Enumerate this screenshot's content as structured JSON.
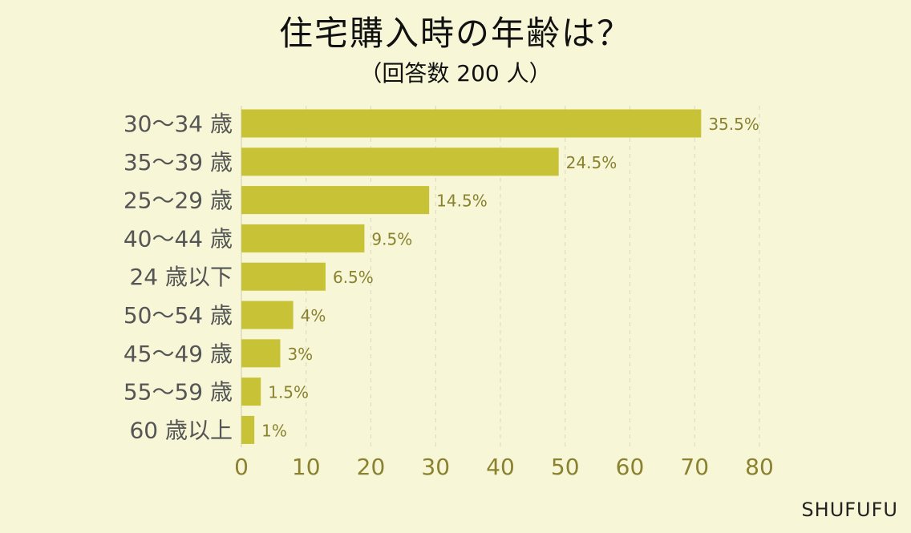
{
  "chart_data": {
    "type": "bar",
    "orientation": "horizontal",
    "title": "住宅購入時の年齢は？",
    "subtitle": "（回答数 200 人）",
    "categories": [
      "30～34 歳",
      "35～39 歳",
      "25～29 歳",
      "40～44 歳",
      "24 歳以下",
      "50～54 歳",
      "45～49 歳",
      "55～59 歳",
      "60 歳以上"
    ],
    "values": [
      71,
      49,
      29,
      19,
      13,
      8,
      6,
      3,
      2
    ],
    "data_labels": [
      "35.5%",
      "24.5%",
      "14.5%",
      "9.5%",
      "6.5%",
      "4%",
      "3%",
      "1.5%",
      "1%"
    ],
    "xlim": [
      0,
      80
    ],
    "xticks": [
      0,
      10,
      20,
      30,
      40,
      50,
      60,
      70,
      80
    ],
    "grid": "vertical dashed",
    "colors": {
      "background": "#f7f6d6",
      "bar": "#c8c336",
      "tick_label": "#8a8230",
      "category_label": "#555555",
      "data_label": "#8a8230",
      "grid": "#d9d8c0"
    }
  },
  "source": "SHUFUFU"
}
